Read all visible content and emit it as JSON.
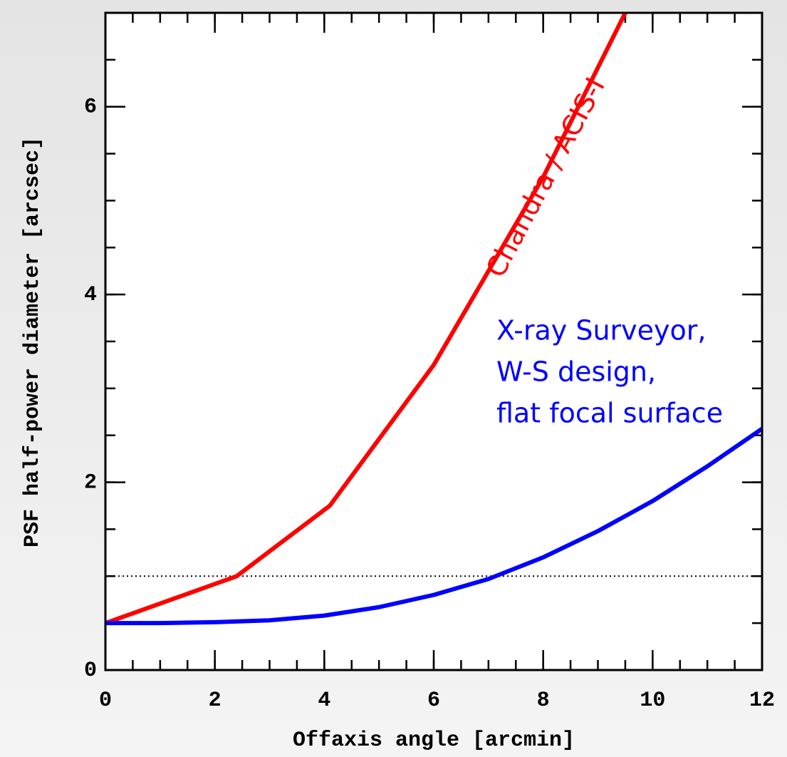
{
  "chart_data": {
    "type": "line",
    "xlabel": "Offaxis angle [arcmin]",
    "ylabel": "PSF half-power diameter [arcsec]",
    "xlim": [
      0,
      12
    ],
    "ylim": [
      0,
      7
    ],
    "xticks": [
      0,
      2,
      4,
      6,
      8,
      10,
      12
    ],
    "yticks": [
      0,
      2,
      4,
      6
    ],
    "xminor": 0.5,
    "yminor": 0.5,
    "hline": 1,
    "series": [
      {
        "name": "Chandra / ACIS-I",
        "color": "#ff0000",
        "x": [
          0,
          2.4,
          4.1,
          6,
          8,
          9.5
        ],
        "values": [
          0.5,
          1.0,
          1.75,
          3.25,
          5.25,
          7.0
        ]
      },
      {
        "name": "X-ray Surveyor,",
        "color": "#0000ff",
        "x": [
          0,
          1,
          2,
          3,
          4,
          5,
          6,
          7,
          8,
          9,
          10,
          11,
          12
        ],
        "values": [
          0.5,
          0.5,
          0.51,
          0.53,
          0.58,
          0.67,
          0.8,
          0.97,
          1.2,
          1.48,
          1.8,
          2.17,
          2.57
        ]
      }
    ],
    "annotations": [
      "W-S design,",
      "flat focal surface"
    ]
  }
}
